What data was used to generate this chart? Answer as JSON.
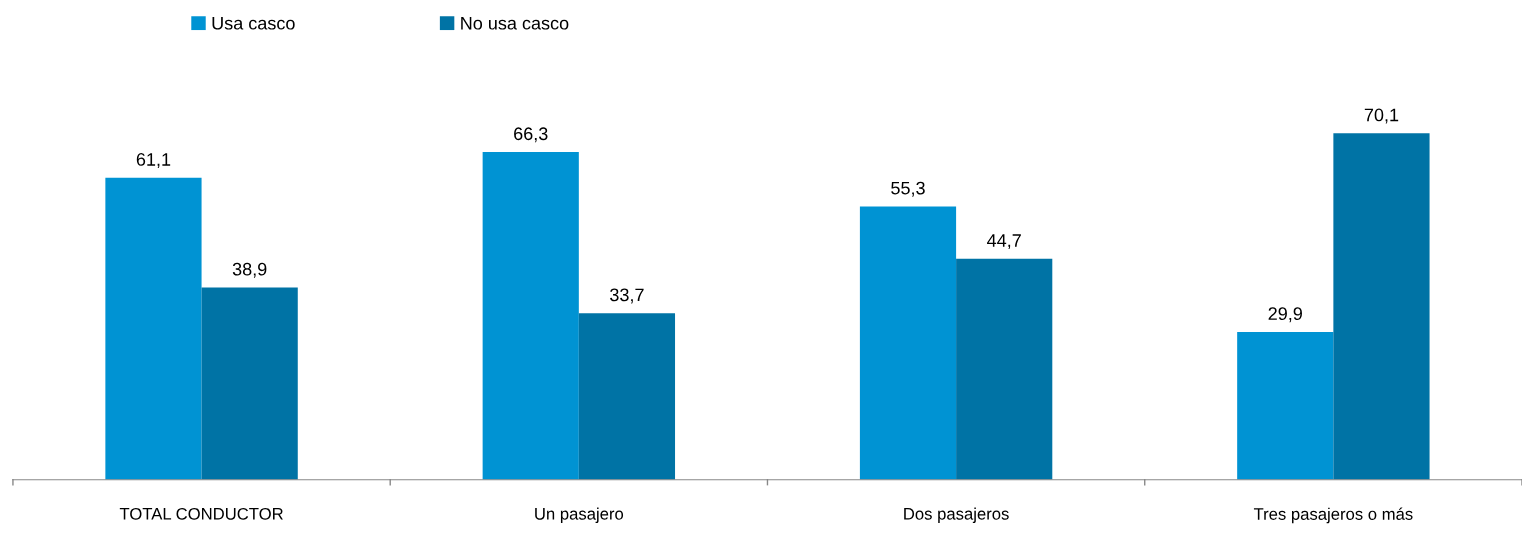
{
  "chart_data": {
    "type": "bar",
    "categories": [
      "TOTAL CONDUCTOR",
      "Un pasajero",
      "Dos pasajeros",
      "Tres pasajeros o más"
    ],
    "series": [
      {
        "name": "Usa casco",
        "color": "#0093d3",
        "values": [
          61.1,
          66.3,
          55.3,
          29.9
        ],
        "value_labels": [
          "61,1",
          "66,3",
          "55,3",
          "29,9"
        ]
      },
      {
        "name": "No usa casco",
        "color": "#0073a5",
        "values": [
          38.9,
          33.7,
          44.7,
          70.1
        ],
        "value_labels": [
          "38,9",
          "33,7",
          "44,7",
          "70,1"
        ]
      }
    ],
    "legend": "top",
    "grid": false
  }
}
